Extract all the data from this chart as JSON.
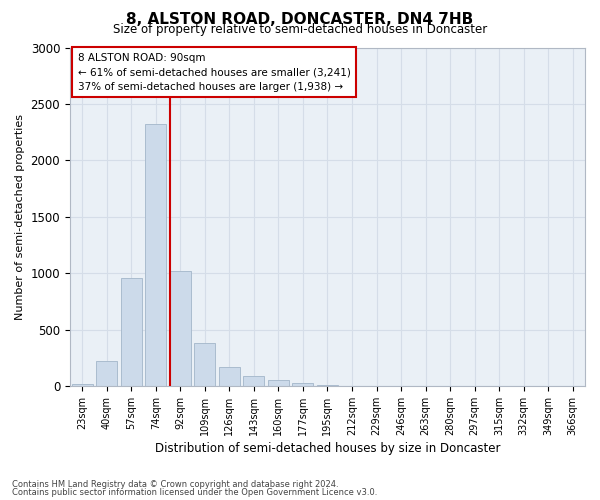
{
  "title": "8, ALSTON ROAD, DONCASTER, DN4 7HB",
  "subtitle": "Size of property relative to semi-detached houses in Doncaster",
  "xlabel": "Distribution of semi-detached houses by size in Doncaster",
  "ylabel": "Number of semi-detached properties",
  "categories": [
    "23sqm",
    "40sqm",
    "57sqm",
    "74sqm",
    "92sqm",
    "109sqm",
    "126sqm",
    "143sqm",
    "160sqm",
    "177sqm",
    "195sqm",
    "212sqm",
    "229sqm",
    "246sqm",
    "263sqm",
    "280sqm",
    "297sqm",
    "315sqm",
    "332sqm",
    "349sqm",
    "366sqm"
  ],
  "bar_values": [
    15,
    220,
    960,
    2320,
    1020,
    380,
    165,
    90,
    55,
    30,
    5,
    2,
    2,
    2,
    2,
    2,
    2,
    2,
    2,
    2,
    2
  ],
  "bar_color": "#ccdaea",
  "bar_edge_color": "#aabcce",
  "grid_color": "#d5dde8",
  "background_color": "#eaf0f6",
  "vline_x_index": 4,
  "vline_color": "#cc0000",
  "property_label": "8 ALSTON ROAD: 90sqm",
  "annotation_line1": "← 61% of semi-detached houses are smaller (3,241)",
  "annotation_line2": "37% of semi-detached houses are larger (1,938) →",
  "annotation_box_color": "#ffffff",
  "annotation_box_edge": "#cc0000",
  "ylim": [
    0,
    3000
  ],
  "yticks": [
    0,
    500,
    1000,
    1500,
    2000,
    2500,
    3000
  ],
  "footer1": "Contains HM Land Registry data © Crown copyright and database right 2024.",
  "footer2": "Contains public sector information licensed under the Open Government Licence v3.0."
}
